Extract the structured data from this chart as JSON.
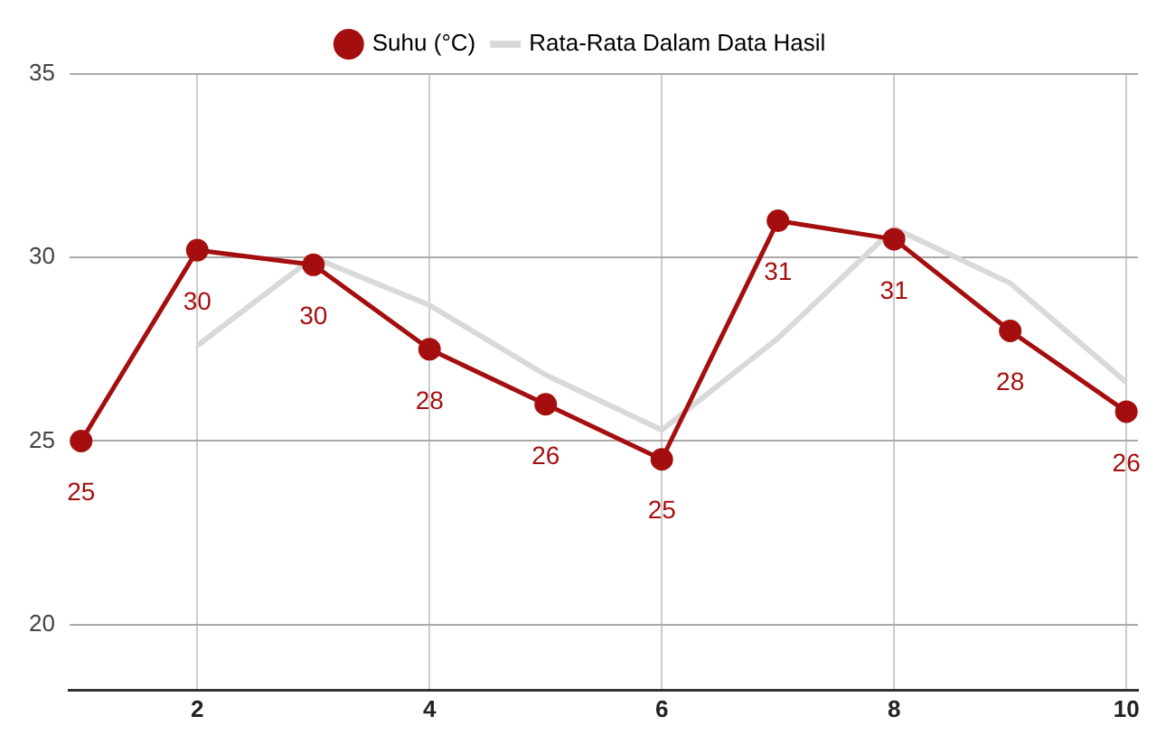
{
  "chart_data": {
    "type": "line",
    "x": [
      1,
      2,
      3,
      4,
      5,
      6,
      7,
      8,
      9,
      10
    ],
    "series": [
      {
        "name": "Suhu (°C)",
        "color": "#a50e0e",
        "marker": "circle",
        "values": [
          25.0,
          30.2,
          29.8,
          27.5,
          26.0,
          24.5,
          31.0,
          30.5,
          28.0,
          25.8
        ],
        "value_labels": [
          "25",
          "30",
          "30",
          "28",
          "26",
          "25",
          "31",
          "31",
          "28",
          "26"
        ]
      },
      {
        "name": "Rata-Rata Dalam Data Hasil",
        "color": "#d9d9d9",
        "marker": "none",
        "values": [
          null,
          27.6,
          30.0,
          28.7,
          26.8,
          25.3,
          27.8,
          30.8,
          29.3,
          26.6
        ]
      }
    ],
    "xlim": [
      0.9,
      10.1
    ],
    "xticks": [
      2,
      4,
      6,
      8,
      10
    ],
    "ylim": [
      18.2,
      35
    ],
    "yticks": [
      20,
      25,
      30,
      35
    ],
    "grid": true,
    "legend": "top"
  }
}
